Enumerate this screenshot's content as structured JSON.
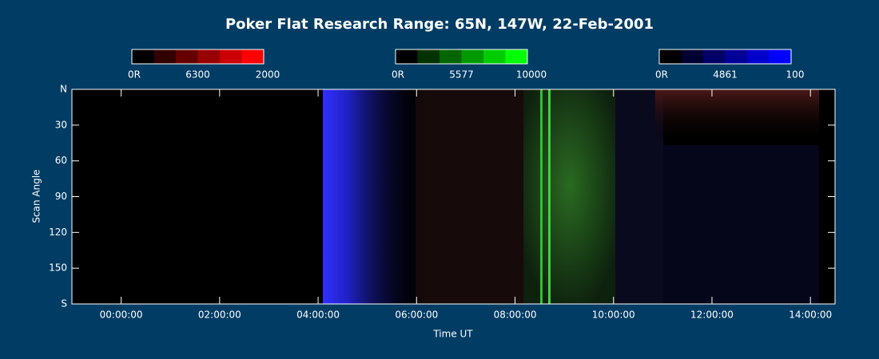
{
  "chart_data": {
    "type": "keogram",
    "title": "Poker Flat Research Range: 65N, 147W, 22-Feb-2001",
    "x_label": "Time UT",
    "y_label": "Scan Angle",
    "xlim": [
      -1,
      14.5
    ],
    "ylim": [
      0,
      180
    ],
    "xticks": [
      {
        "value": 0,
        "label": "00:00:00"
      },
      {
        "value": 2,
        "label": "02:00:00"
      },
      {
        "value": 4,
        "label": "04:00:00"
      },
      {
        "value": 6,
        "label": "06:00:00"
      },
      {
        "value": 8,
        "label": "08:00:00"
      },
      {
        "value": 10,
        "label": "10:00:00"
      },
      {
        "value": 12,
        "label": "12:00:00"
      },
      {
        "value": 14,
        "label": "14:00:00"
      }
    ],
    "yticks": [
      {
        "value": 0,
        "label": "N"
      },
      30,
      60,
      90,
      120,
      150,
      {
        "value": 180,
        "label": "S"
      }
    ],
    "colorbars": [
      {
        "min_label": "0R",
        "wavelength": "6300",
        "max_label": "2000",
        "colors": [
          "#000000",
          "#330000",
          "#660000",
          "#990000",
          "#cc0000",
          "#ff0000"
        ]
      },
      {
        "min_label": "0R",
        "wavelength": "5577",
        "max_label": "10000",
        "colors": [
          "#000000",
          "#003300",
          "#006600",
          "#009900",
          "#00cc00",
          "#00ff00"
        ]
      },
      {
        "min_label": "0R",
        "wavelength": "4861",
        "max_label": "100",
        "colors": [
          "#000000",
          "#000033",
          "#000066",
          "#000099",
          "#0000cc",
          "#0000ff"
        ]
      }
    ]
  }
}
